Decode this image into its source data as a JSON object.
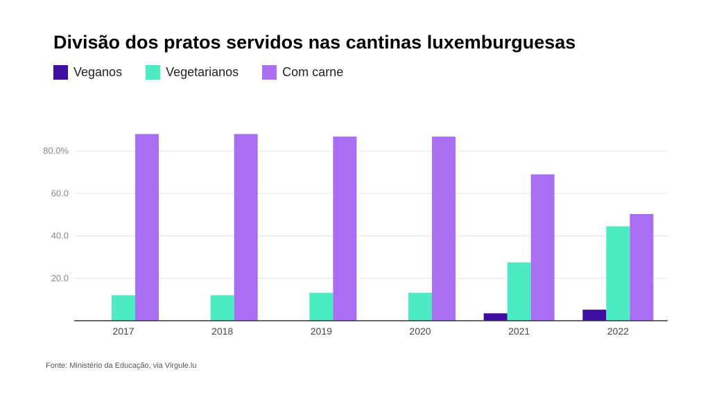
{
  "title": "Divisão dos pratos servidos nas cantinas luxemburguesas",
  "source": "Fonte: Ministério da Educação, via Virgule.lu",
  "chart_data": {
    "type": "bar",
    "title": "Divisão dos pratos servidos nas cantinas luxemburguesas",
    "xlabel": "",
    "ylabel": "",
    "categories": [
      "2017",
      "2018",
      "2019",
      "2020",
      "2021",
      "2022"
    ],
    "series": [
      {
        "name": "Veganos",
        "color": "#3f0ea0",
        "values": [
          0,
          0,
          0,
          0,
          3.5,
          5.2
        ]
      },
      {
        "name": "Vegetarianos",
        "color": "#4debc2",
        "values": [
          12,
          12,
          13.2,
          13.2,
          27.5,
          44.5
        ]
      },
      {
        "name": "Com carne",
        "color": "#aa6ef5",
        "values": [
          88,
          88,
          86.8,
          86.8,
          69,
          50.3
        ]
      }
    ],
    "ylim": [
      0,
      90
    ],
    "yticks": [
      {
        "value": 20,
        "label": "20.0"
      },
      {
        "value": 40,
        "label": "40.0"
      },
      {
        "value": 60,
        "label": "60.0"
      },
      {
        "value": 80,
        "label": "80.0%"
      }
    ],
    "grid": true,
    "legend_position": "top-left"
  }
}
